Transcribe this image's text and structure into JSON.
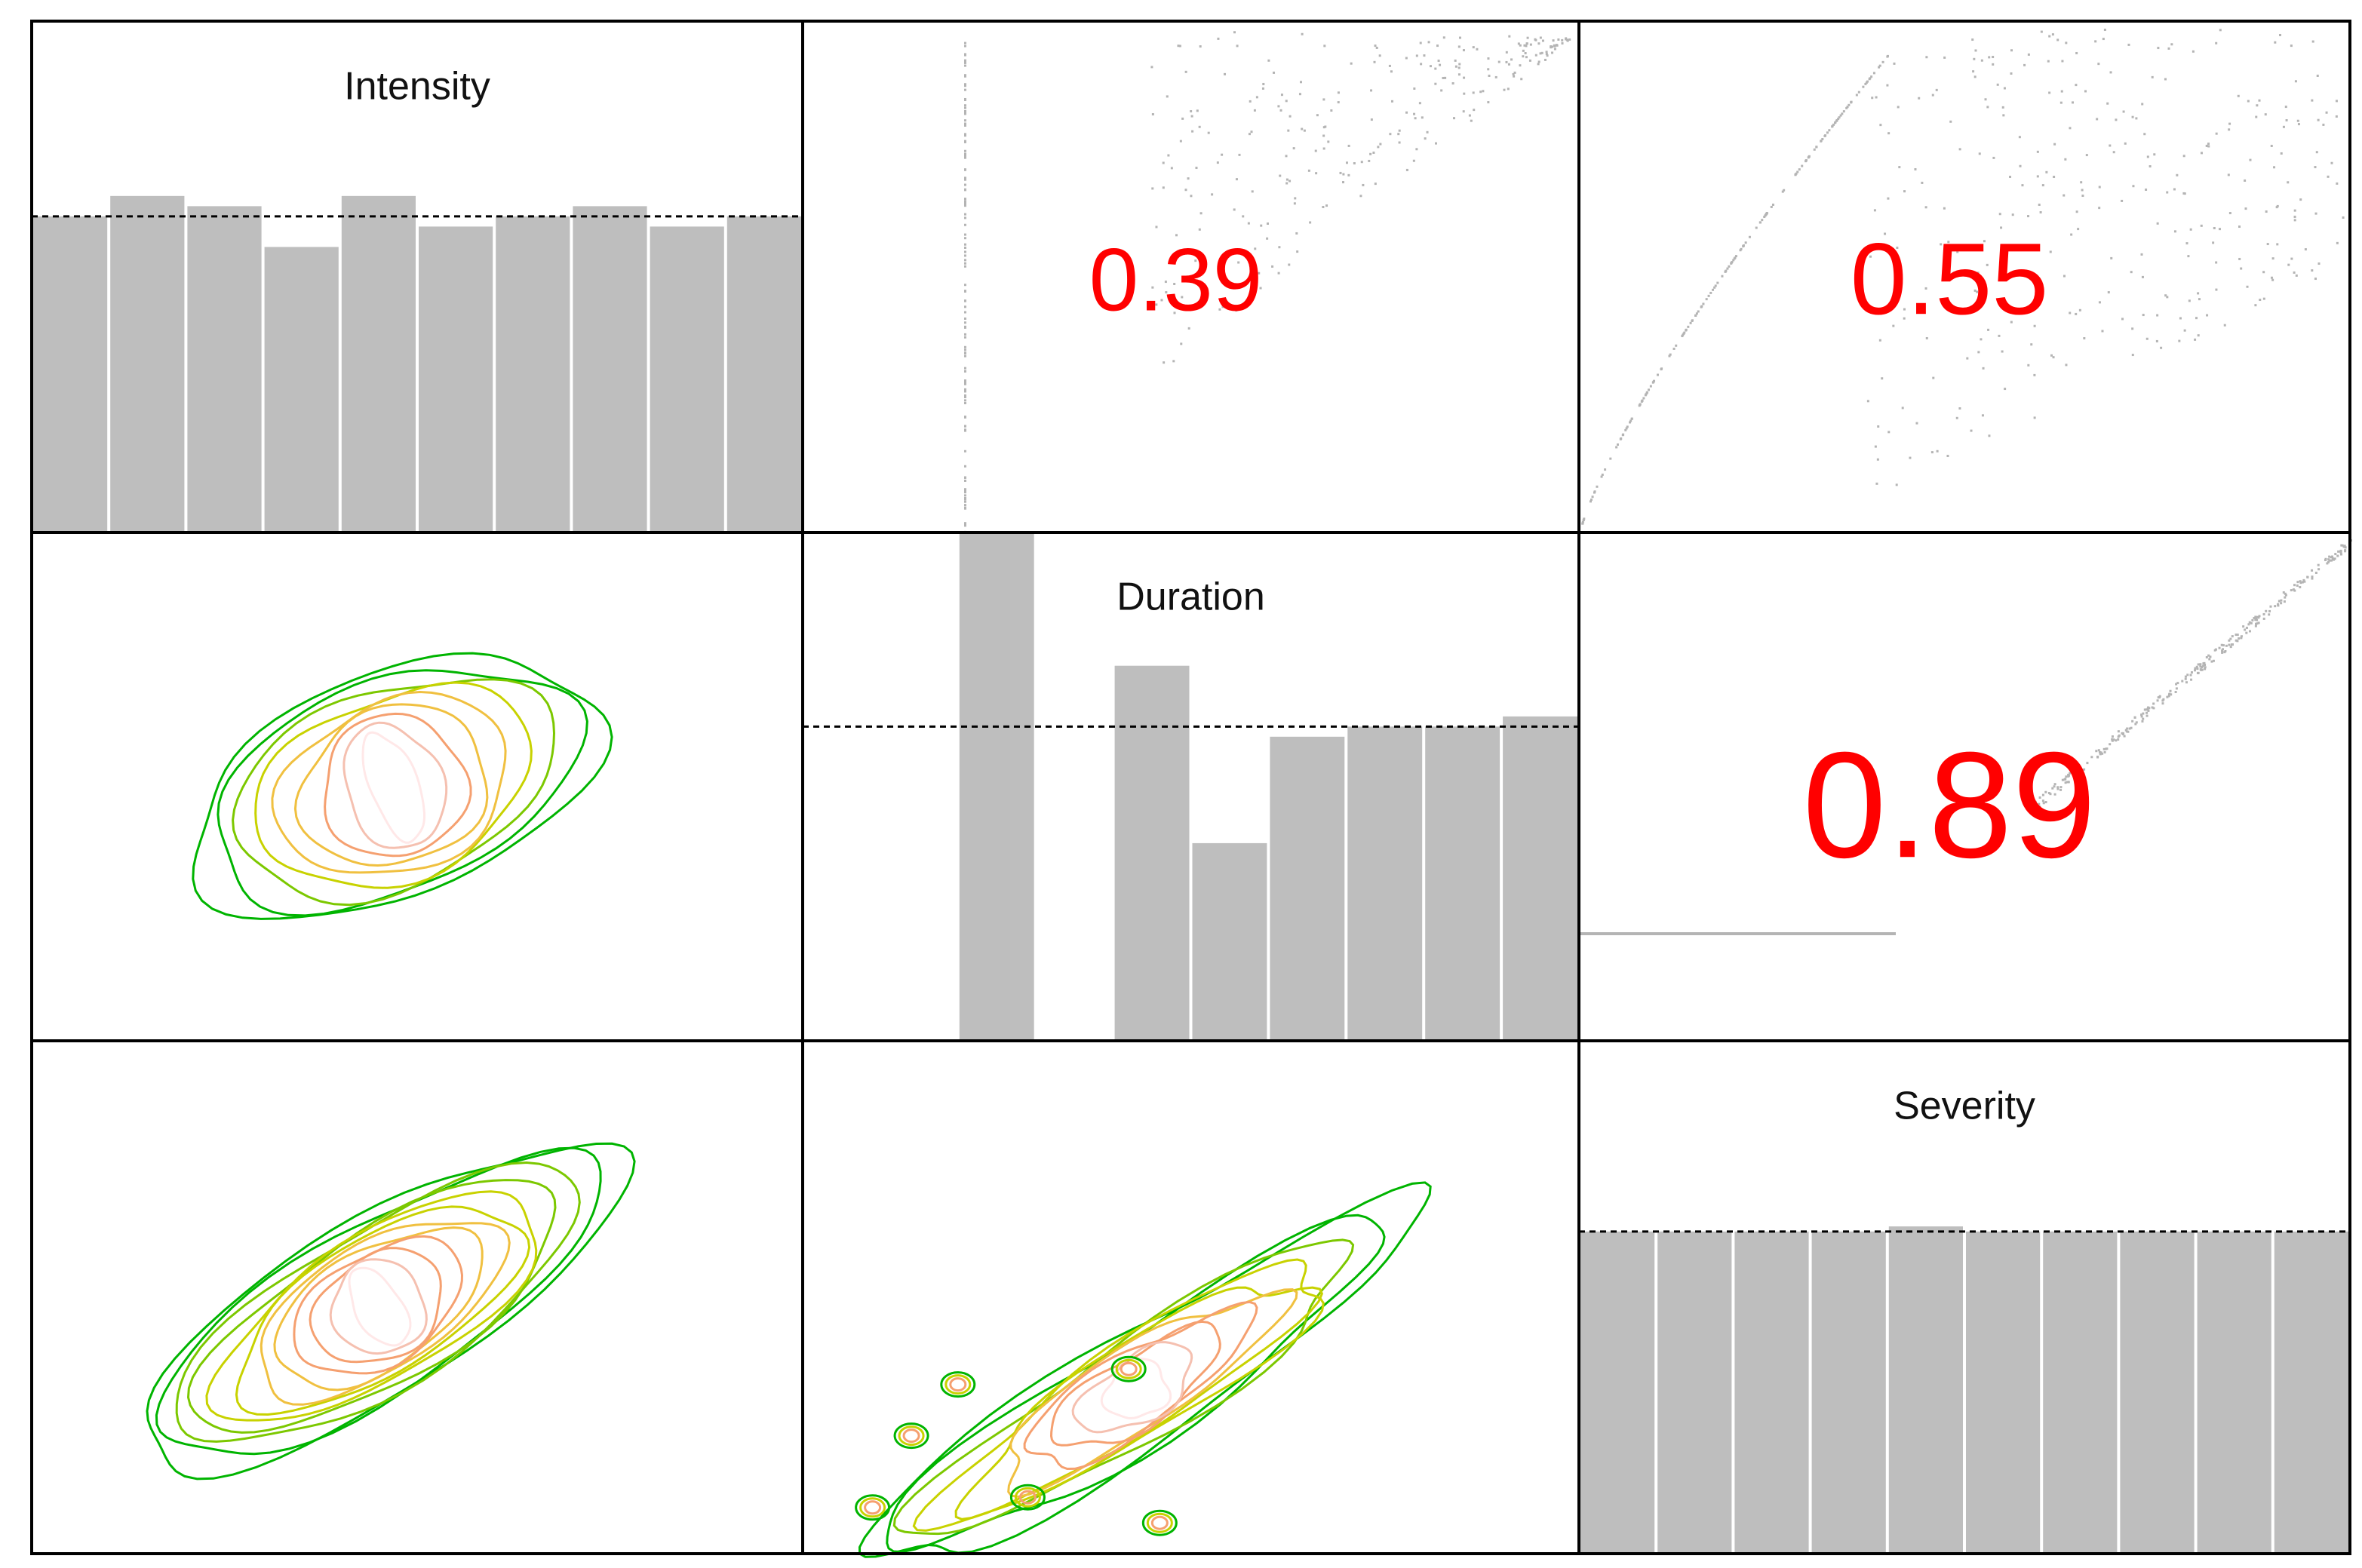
{
  "variables": [
    "Intensity",
    "Duration",
    "Severity"
  ],
  "colors": {
    "bar_fill": "#bebebe",
    "bar_stroke": "#ffffff",
    "correlation_text": "#ff0000",
    "scatter_points": "#b4b4b4",
    "contour_scale": [
      "#00b400",
      "#7cc800",
      "#c8d200",
      "#f0c040",
      "#f5a070",
      "#f5c0b0",
      "#ffe8e8"
    ],
    "frame": "#000000"
  },
  "chart_data": {
    "type": "pairs",
    "title": "",
    "diagonal_histograms": [
      {
        "variable": "Intensity",
        "label": "Intensity",
        "bin_heights": [
          0.62,
          0.66,
          0.64,
          0.56,
          0.66,
          0.6,
          0.62,
          0.64,
          0.6,
          0.62
        ],
        "uniform_reference": 0.62,
        "bins_shown": 10
      },
      {
        "variable": "Duration",
        "label": "Duration",
        "bins": [
          {
            "index": 2,
            "height": 1.0
          },
          {
            "index": 4,
            "height": 0.74
          },
          {
            "index": 5,
            "height": 0.39
          },
          {
            "index": 6,
            "height": 0.6
          },
          {
            "index": 7,
            "height": 0.62
          },
          {
            "index": 8,
            "height": 0.62
          },
          {
            "index": 9,
            "height": 0.64
          }
        ],
        "total_bins": 10,
        "uniform_reference": 0.62
      },
      {
        "variable": "Severity",
        "label": "Severity",
        "bin_heights": [
          0.63,
          0.63,
          0.63,
          0.63,
          0.64,
          0.63,
          0.63,
          0.63,
          0.63,
          0.63
        ],
        "uniform_reference": 0.63,
        "bins_shown": 10
      }
    ],
    "upper_correlations": [
      {
        "x": "Duration",
        "y": "Intensity",
        "value": "0.39",
        "font_scale": 0.7
      },
      {
        "x": "Severity",
        "y": "Intensity",
        "value": "0.55",
        "font_scale": 0.8
      },
      {
        "x": "Severity",
        "y": "Duration",
        "value": "0.89",
        "font_scale": 1.2
      }
    ],
    "lower_contours": [
      {
        "x": "Intensity",
        "y": "Duration",
        "shape": "broad-elliptical",
        "levels": 9
      },
      {
        "x": "Intensity",
        "y": "Severity",
        "shape": "elongated-diagonal",
        "levels": 12
      },
      {
        "x": "Duration",
        "y": "Severity",
        "shape": "narrow-ridge",
        "levels": 10
      }
    ],
    "grid": false,
    "legend": "none"
  }
}
